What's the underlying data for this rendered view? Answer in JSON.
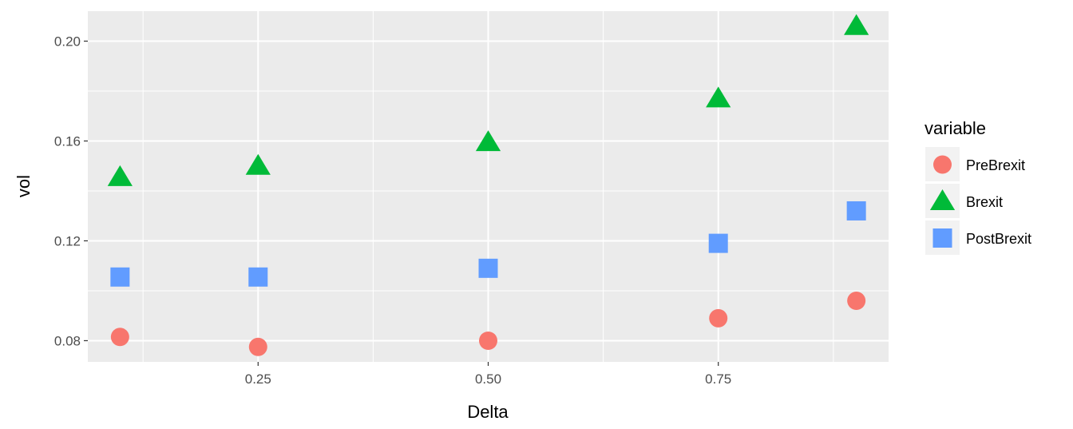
{
  "chart_data": {
    "type": "scatter",
    "title": "",
    "xlabel": "Delta",
    "ylabel": "vol",
    "xlim": [
      0.065,
      0.935
    ],
    "ylim": [
      0.0715,
      0.212
    ],
    "xticks": [
      0.25,
      0.5,
      0.75
    ],
    "xtick_labels": [
      "0.25",
      "0.50",
      "0.75"
    ],
    "yticks": [
      0.08,
      0.12,
      0.16,
      0.2
    ],
    "ytick_labels": [
      "0.08",
      "0.12",
      "0.16",
      "0.20"
    ],
    "grid": true,
    "legend": {
      "title": "variable",
      "position": "right"
    },
    "series": [
      {
        "name": "PreBrexit",
        "shape": "circle",
        "color": "#F8766D",
        "x": [
          0.1,
          0.25,
          0.5,
          0.75,
          0.9
        ],
        "y": [
          0.0815,
          0.0775,
          0.08,
          0.089,
          0.096
        ]
      },
      {
        "name": "Brexit",
        "shape": "triangle",
        "color": "#00BA38",
        "x": [
          0.1,
          0.25,
          0.5,
          0.75,
          0.9
        ],
        "y": [
          0.1455,
          0.15,
          0.1595,
          0.177,
          0.206
        ]
      },
      {
        "name": "PostBrexit",
        "shape": "square",
        "color": "#619CFF",
        "x": [
          0.1,
          0.25,
          0.5,
          0.75,
          0.9
        ],
        "y": [
          0.1055,
          0.1055,
          0.109,
          0.119,
          0.132
        ]
      }
    ]
  },
  "colors": {
    "panel": "#EBEBEB",
    "grid": "#FFFFFF",
    "legend_key_bg": "#F2F2F2"
  }
}
